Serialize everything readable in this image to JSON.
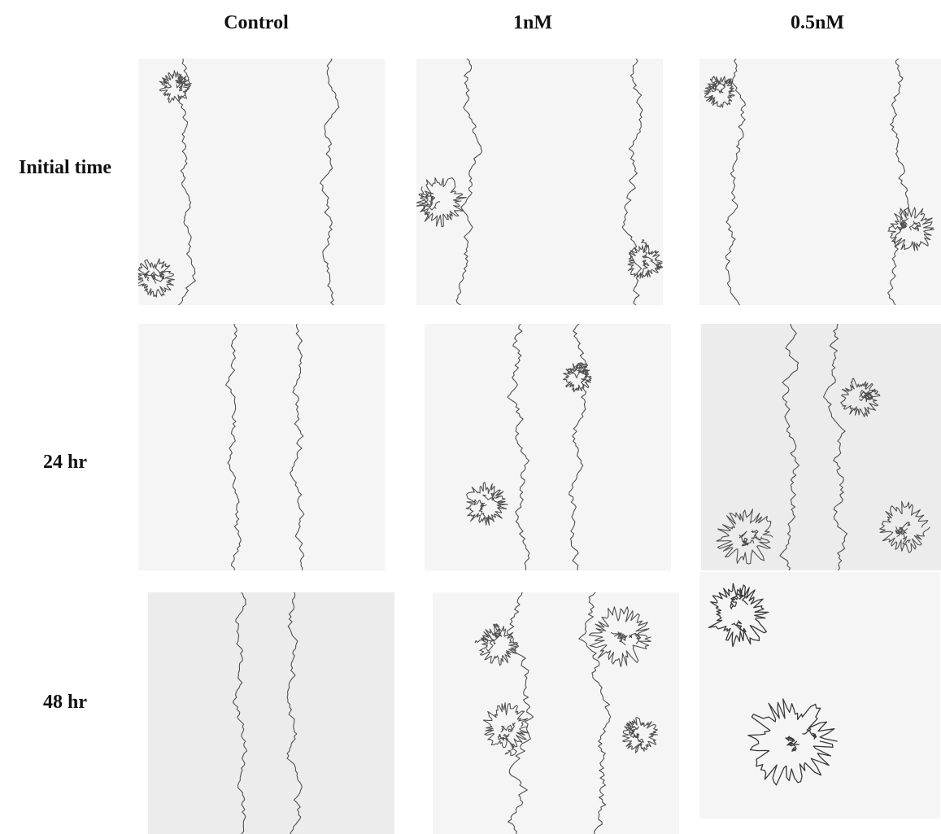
{
  "columns": [
    "Control",
    "1nM",
    "0.5nM"
  ],
  "rows": [
    "Initial time",
    "24 hr",
    "48 hr"
  ],
  "colors": {
    "background": "#ffffff",
    "panel_light": "#f5f5f5",
    "panel_dark": "#ececec",
    "edge": "#505050",
    "label": "#111111"
  },
  "panels": [
    {
      "row": "Initial time",
      "column": "Control"
    },
    {
      "row": "Initial time",
      "column": "1nM"
    },
    {
      "row": "Initial time",
      "column": "0.5nM"
    },
    {
      "row": "24 hr",
      "column": "Control"
    },
    {
      "row": "24 hr",
      "column": "1nM"
    },
    {
      "row": "24 hr",
      "column": "0.5nM"
    },
    {
      "row": "48 hr",
      "column": "Control"
    },
    {
      "row": "48 hr",
      "column": "1nM"
    },
    {
      "row": "48 hr",
      "column": "0.5nM"
    }
  ]
}
